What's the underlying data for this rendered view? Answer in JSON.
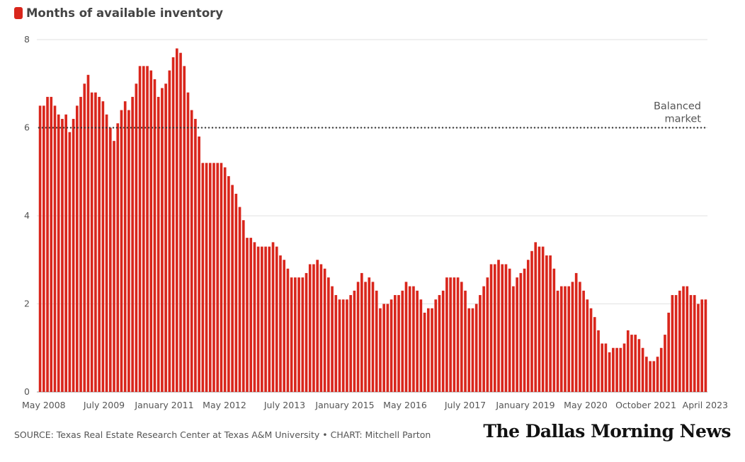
{
  "chart_data": {
    "type": "bar",
    "title": "Months of available inventory",
    "legend_label": "Months of available inventory",
    "bar_color": "#d9261c",
    "ylim": [
      0,
      8
    ],
    "yticks": [
      0,
      2,
      4,
      6,
      8
    ],
    "start_month": "May 2008",
    "end_month": "April 2023",
    "xtick_labels": [
      "May 2008",
      "July 2009",
      "January 2011",
      "May 2012",
      "July 2013",
      "January 2015",
      "May 2016",
      "July 2017",
      "January 2019",
      "May 2020",
      "October 2021",
      "April 2023"
    ],
    "values": [
      6.5,
      6.5,
      6.7,
      6.7,
      6.5,
      6.3,
      6.2,
      6.3,
      5.9,
      6.2,
      6.5,
      6.7,
      7.0,
      7.2,
      6.8,
      6.8,
      6.7,
      6.6,
      6.3,
      6.0,
      5.7,
      6.1,
      6.4,
      6.6,
      6.4,
      6.7,
      7.0,
      7.4,
      7.4,
      7.4,
      7.3,
      7.1,
      6.7,
      6.9,
      7.0,
      7.3,
      7.6,
      7.8,
      7.7,
      7.4,
      6.8,
      6.4,
      6.2,
      5.8,
      5.2,
      5.2,
      5.2,
      5.2,
      5.2,
      5.2,
      5.1,
      4.9,
      4.7,
      4.5,
      4.2,
      3.9,
      3.5,
      3.5,
      3.4,
      3.3,
      3.3,
      3.3,
      3.3,
      3.4,
      3.3,
      3.1,
      3.0,
      2.8,
      2.6,
      2.6,
      2.6,
      2.6,
      2.7,
      2.9,
      2.9,
      3.0,
      2.9,
      2.8,
      2.6,
      2.4,
      2.2,
      2.1,
      2.1,
      2.1,
      2.2,
      2.3,
      2.5,
      2.7,
      2.5,
      2.6,
      2.5,
      2.3,
      1.9,
      2.0,
      2.0,
      2.1,
      2.2,
      2.2,
      2.3,
      2.5,
      2.4,
      2.4,
      2.3,
      2.1,
      1.8,
      1.9,
      1.9,
      2.1,
      2.2,
      2.3,
      2.6,
      2.6,
      2.6,
      2.6,
      2.5,
      2.3,
      1.9,
      1.9,
      2.0,
      2.2,
      2.4,
      2.6,
      2.9,
      2.9,
      3.0,
      2.9,
      2.9,
      2.8,
      2.4,
      2.6,
      2.7,
      2.8,
      3.0,
      3.2,
      3.4,
      3.3,
      3.3,
      3.1,
      3.1,
      2.8,
      2.3,
      2.4,
      2.4,
      2.4,
      2.5,
      2.7,
      2.5,
      2.3,
      2.1,
      1.9,
      1.7,
      1.4,
      1.1,
      1.1,
      0.9,
      1.0,
      1.0,
      1.0,
      1.1,
      1.4,
      1.3,
      1.3,
      1.2,
      1.0,
      0.8,
      0.7,
      0.7,
      0.8,
      1.0,
      1.3,
      1.8,
      2.2,
      2.2,
      2.3,
      2.4,
      2.4,
      2.2,
      2.2,
      2.0,
      2.1,
      2.1
    ],
    "reference_line": {
      "value": 6,
      "label_line1": "Balanced",
      "label_line2": "market"
    },
    "grid": true
  },
  "footer": {
    "source": "SOURCE: Texas Real Estate Research Center at Texas A&M University • CHART: Mitchell Parton"
  },
  "logo_text": "The Dallas Morning News"
}
